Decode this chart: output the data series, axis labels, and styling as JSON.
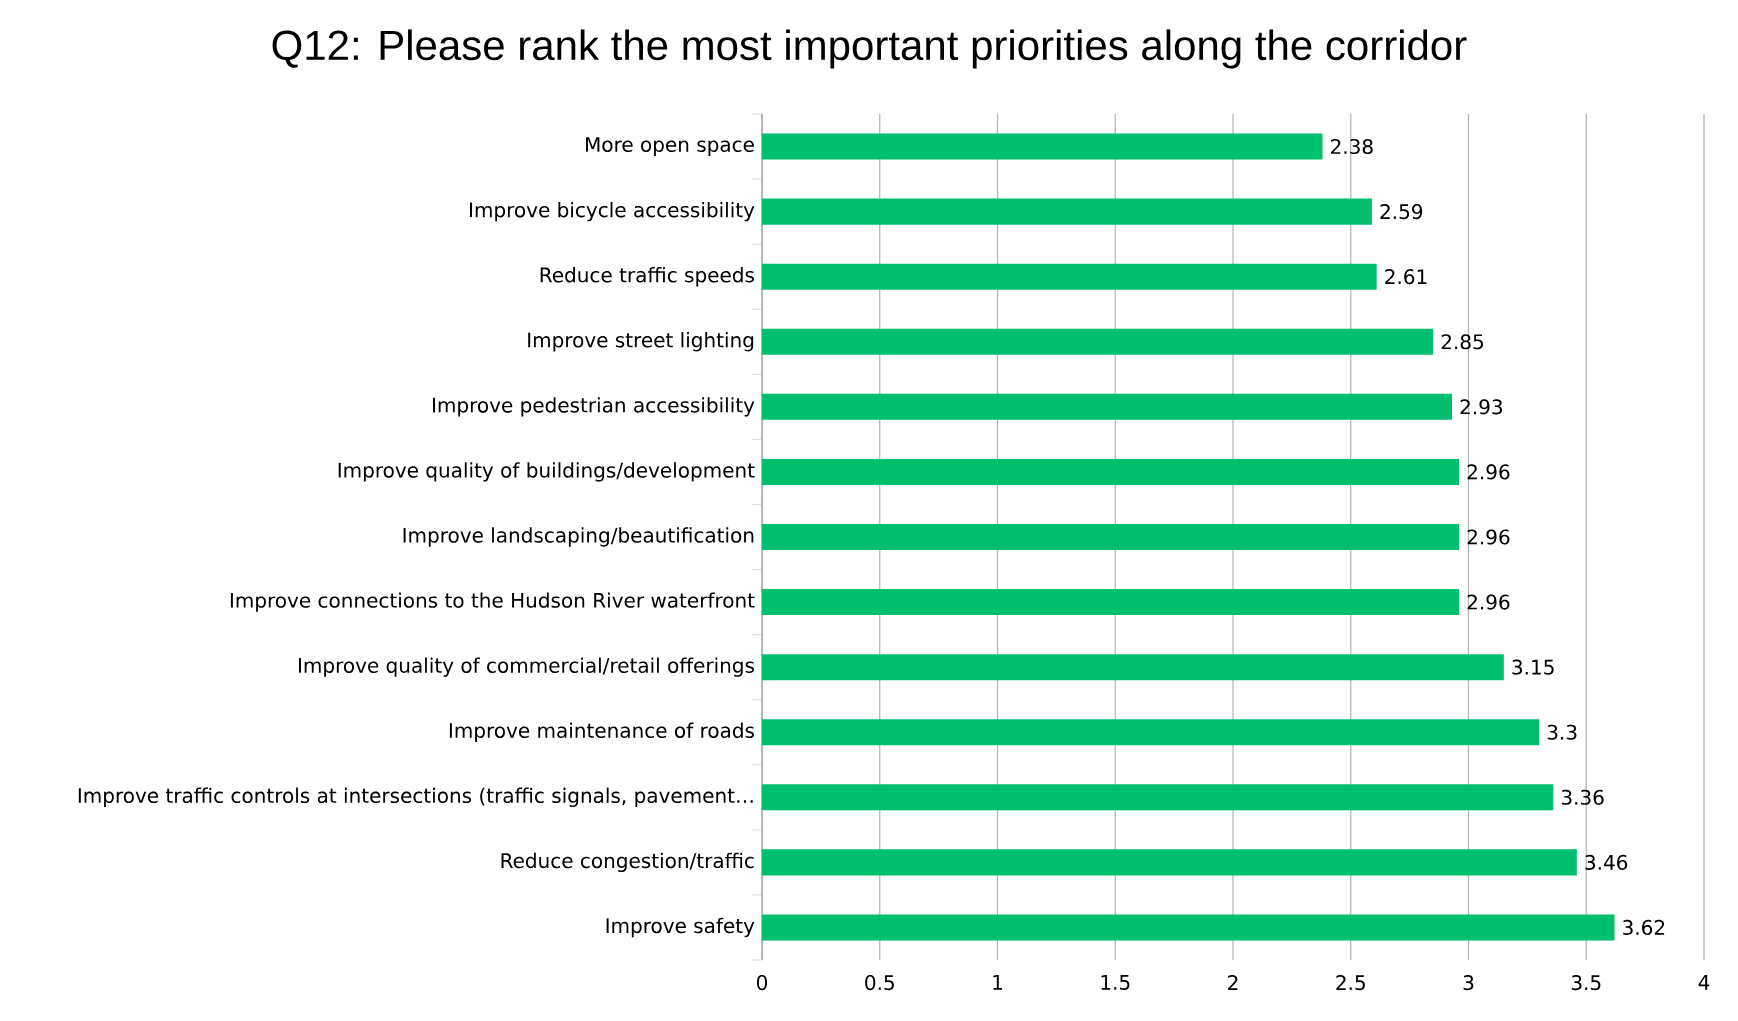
{
  "chart_data": {
    "type": "bar",
    "orientation": "horizontal",
    "title": "Q12: Please rank the most important priorities along the corridor",
    "categories": [
      "More open space",
      "Improve bicycle accessibility",
      "Reduce traffic speeds",
      "Improve street lighting",
      "Improve pedestrian accessibility",
      "Improve quality of buildings/development",
      "Improve landscaping/beautification",
      "Improve connections to the Hudson River waterfront",
      "Improve quality of commercial/retail offerings",
      "Improve maintenance of roads",
      "Improve traffic controls at intersections (traffic signals, pavement…",
      "Reduce congestion/traffic",
      "Improve safety"
    ],
    "values": [
      2.38,
      2.59,
      2.61,
      2.85,
      2.93,
      2.96,
      2.96,
      2.96,
      3.15,
      3.3,
      3.36,
      3.46,
      3.62
    ],
    "color": "#00bf6f",
    "xlim": [
      0,
      4
    ],
    "xticks": [
      0,
      0.5,
      1,
      1.5,
      2,
      2.5,
      3,
      3.5,
      4
    ],
    "grid": "x",
    "data_labels": true
  }
}
